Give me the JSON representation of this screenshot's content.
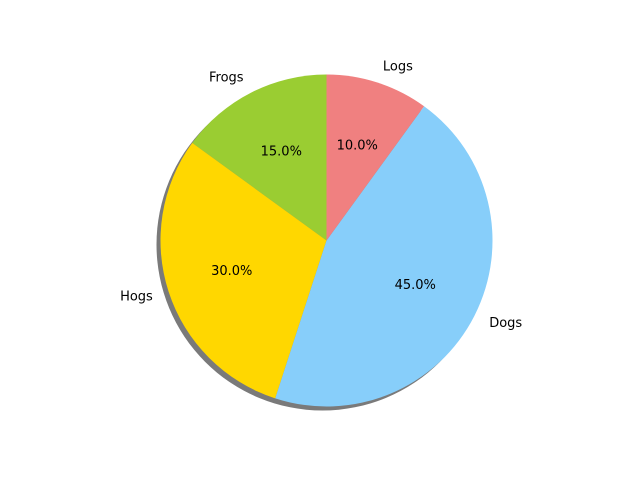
{
  "chart_data": {
    "type": "pie",
    "title": "",
    "slices": [
      {
        "label": "Frogs",
        "value": 15.0,
        "pct_text": "15.0%",
        "color": "#9ACD32"
      },
      {
        "label": "Hogs",
        "value": 30.0,
        "pct_text": "30.0%",
        "color": "#FFD700"
      },
      {
        "label": "Dogs",
        "value": 45.0,
        "pct_text": "45.0%",
        "color": "#87CEFA"
      },
      {
        "label": "Logs",
        "value": 10.0,
        "pct_text": "10.0%",
        "color": "#F08080"
      }
    ],
    "start_angle_deg": 90,
    "direction": "counterclockwise",
    "shadow": true,
    "shadow_color": "#7a7a7a"
  }
}
